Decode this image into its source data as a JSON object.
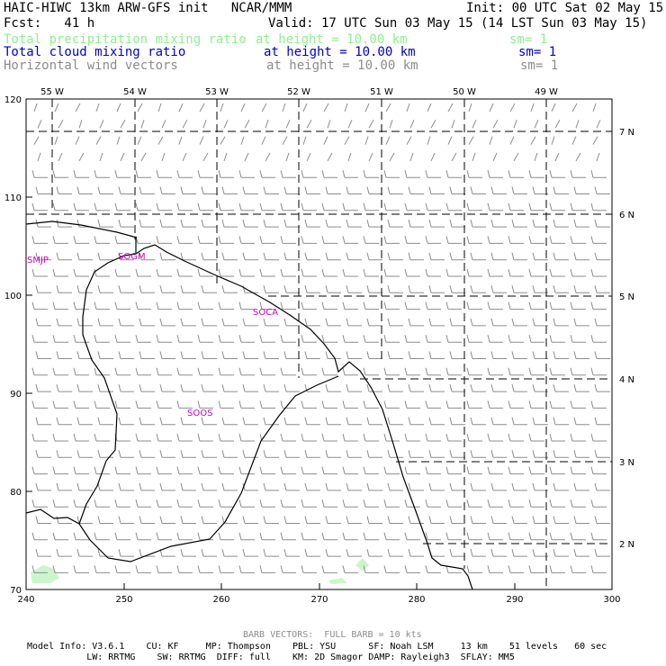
{
  "header": {
    "title": "HAIC-HIWC 13km ARW-GFS init   NCAR/MMM",
    "init": "Init: 00 UTC Sat 02 May 15",
    "fcst": "Fcst:   41 h",
    "valid": "Valid: 17 UTC Sun 03 May 15 (14 LST Sun 03 May 15)",
    "fields": [
      {
        "name": "Total precipitation mixing ratio",
        "level": "at height = 10.00 km",
        "sm": "sm= 1",
        "color": "#8ef08e"
      },
      {
        "name": "Total cloud mixing ratio",
        "level": "at height = 10.00 km",
        "sm": "sm= 1",
        "color": "#0000cc"
      },
      {
        "name": "Horizontal wind vectors",
        "level": "at height = 10.00 km",
        "sm": "sm= 1",
        "color": "#8c8c8c"
      }
    ]
  },
  "map": {
    "x_ticks": [
      "240",
      "250",
      "260",
      "270",
      "280",
      "290",
      "300"
    ],
    "y_ticks": [
      "70",
      "80",
      "90",
      "100",
      "110",
      "120"
    ],
    "lon_labels": [
      "55 W",
      "54 W",
      "53 W",
      "52 W",
      "51 W",
      "50 W",
      "49 W"
    ],
    "lat_labels": [
      "7 N",
      "6 N",
      "5 N",
      "4 N",
      "3 N",
      "2 N"
    ],
    "stations": [
      "SMJP",
      "SOGM",
      "SOCA",
      "SOOS"
    ],
    "colors": {
      "coast": "#000000",
      "grid": "#000000",
      "barb": "#8c8c8c",
      "precip": "#ccf5cc",
      "station": "#cc00cc"
    }
  },
  "footer": {
    "barb_note": "BARB VECTORS:  FULL BARB = 10 kts",
    "line1": "Model Info: V3.6.1    CU: KF     MP: Thompson    PBL: YSU      SF: Noah LSM     13 km    51 levels   60 sec",
    "line2": "           LW: RRTMG    SW: RRTMG  DIFF: full    KM: 2D Smagor DAMP: Rayleigh3  SFLAY: MM5"
  }
}
